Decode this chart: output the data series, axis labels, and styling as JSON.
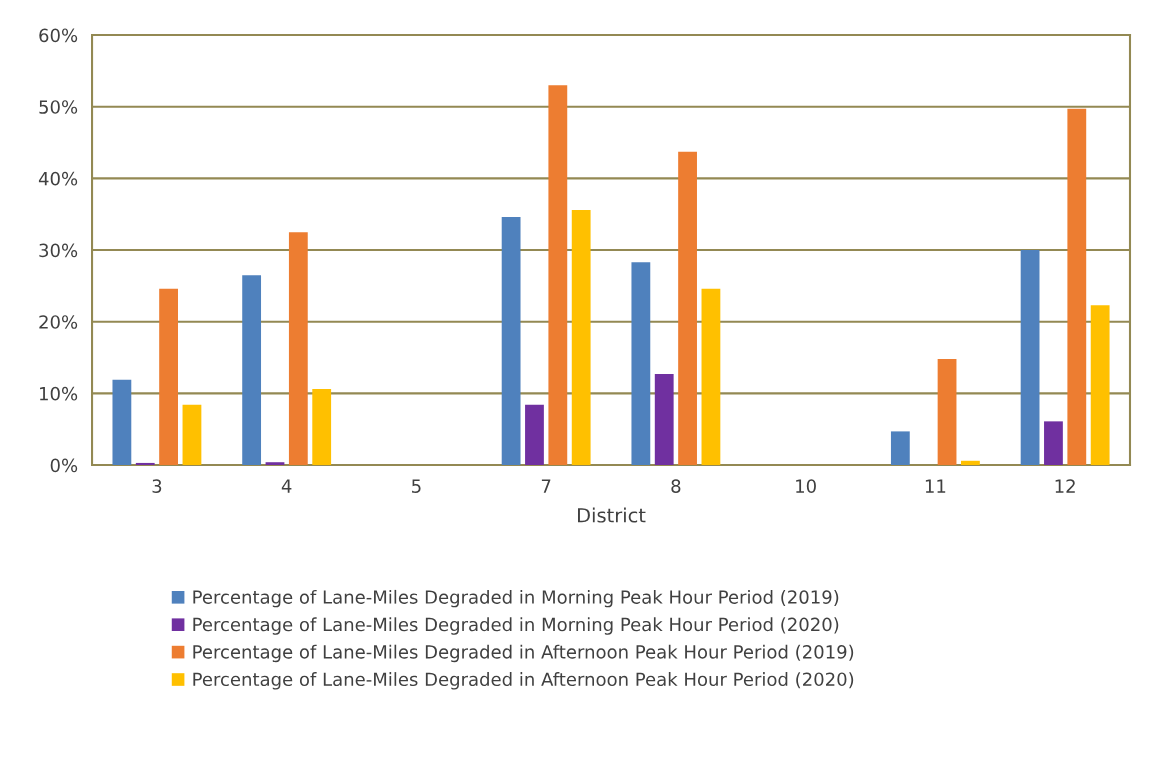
{
  "chart_data": {
    "type": "bar",
    "xlabel": "District",
    "categories": [
      "3",
      "4",
      "5",
      "7",
      "8",
      "10",
      "11",
      "12"
    ],
    "series": [
      {
        "name": "Percentage of Lane-Miles Degraded in Morning Peak Hour Period (2019)",
        "color": "#4f81bd",
        "values": [
          11.9,
          26.5,
          0,
          34.6,
          28.3,
          0,
          4.7,
          30.0
        ]
      },
      {
        "name": "Percentage of Lane-Miles Degraded in Morning Peak Hour Period (2020)",
        "color": "#7030a0",
        "values": [
          0.3,
          0.4,
          0,
          8.4,
          12.7,
          0,
          0,
          6.1
        ]
      },
      {
        "name": "Percentage of Lane-Miles Degraded in Afternoon Peak Hour Period (2019)",
        "color": "#ed7d31",
        "values": [
          24.6,
          32.5,
          0,
          53.0,
          43.7,
          0,
          14.8,
          49.7
        ]
      },
      {
        "name": "Percentage of Lane-Miles Degraded in Afternoon Peak Hour Period (2020)",
        "color": "#ffc000",
        "values": [
          8.4,
          10.6,
          0,
          35.6,
          24.6,
          0,
          0.6,
          22.3
        ]
      }
    ],
    "ylim": [
      0,
      60
    ],
    "yticks": [
      {
        "value": 0,
        "label": "0%"
      },
      {
        "value": 10,
        "label": "10%"
      },
      {
        "value": 20,
        "label": "20%"
      },
      {
        "value": 30,
        "label": "30%"
      },
      {
        "value": 40,
        "label": "40%"
      },
      {
        "value": 50,
        "label": "50%"
      },
      {
        "value": 60,
        "label": "60%"
      }
    ],
    "grid": "y",
    "legend": "bottom"
  }
}
